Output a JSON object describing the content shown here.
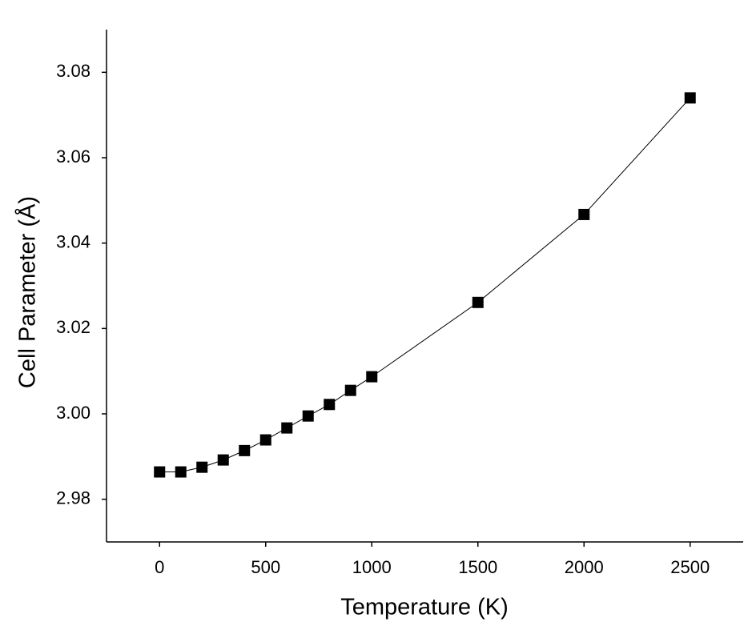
{
  "chart_data": {
    "type": "line",
    "x_label": "Temperature (K)",
    "y_label": "Cell Parameter (Å)",
    "x": [
      0,
      100,
      200,
      300,
      400,
      500,
      600,
      700,
      800,
      900,
      1000,
      1500,
      2000,
      2500
    ],
    "series": [
      {
        "color": "#000000",
        "values": [
          2.9864,
          2.9864,
          2.9875,
          2.9892,
          2.9914,
          2.9939,
          2.9967,
          2.9995,
          3.0022,
          3.0055,
          3.0087,
          3.0261,
          3.0467,
          3.074
        ]
      }
    ],
    "xlim": [
      -250,
      2750
    ],
    "ylim": [
      2.97,
      3.09
    ],
    "xticks": [
      0,
      500,
      1000,
      1500,
      2000,
      2500
    ],
    "yticks": [
      2.98,
      {
        "value": 3,
        "label": "3.00"
      },
      3.02,
      3.04,
      3.06,
      3.08
    ],
    "marker": "square",
    "grid": false
  }
}
